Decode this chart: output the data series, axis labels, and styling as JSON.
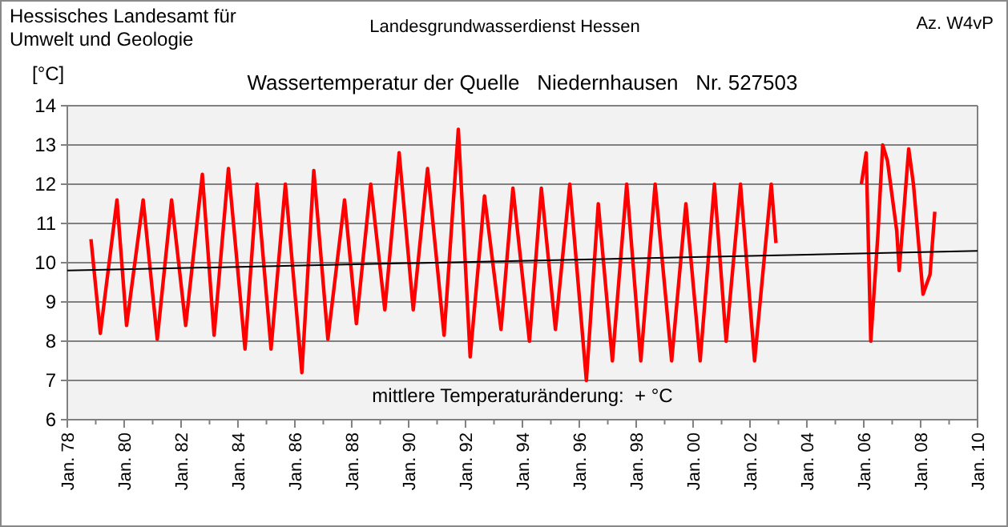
{
  "chart_data": {
    "type": "line",
    "title": "Wassertemperatur der Quelle   Niedernhausen   Nr. 527503",
    "ylabel": "[°C]",
    "annotations": [
      "Hessisches Landesamt für\nUmwelt und Geologie",
      "Landesgrundwasserdienst Hessen",
      "Az. W4vP",
      "mittlere Temperaturänderung:  + °C"
    ],
    "series": [
      {
        "color": "#ff0000",
        "x": [
          "1978-11",
          "1979-03",
          "1979-10",
          "1980-02",
          "1980-09",
          "1981-03",
          "1981-09",
          "1982-03",
          "1982-10",
          "1983-03",
          "1983-09",
          "1984-04",
          "1984-09",
          "1985-03",
          "1985-09",
          "1986-04",
          "1986-09",
          "1987-03",
          "1987-10",
          "1988-03",
          "1988-09",
          "1989-03",
          "1989-09",
          "1990-03",
          "1990-09",
          "1991-04",
          "1991-10",
          "1992-03",
          "1992-09",
          "1993-04",
          "1993-09",
          "1994-04",
          "1994-09",
          "1995-03",
          "1995-09",
          "1996-04",
          "1996-09",
          "1997-03",
          "1997-09",
          "1998-03",
          "1998-09",
          "1999-04",
          "1999-10",
          "2000-04",
          "2000-10",
          "2001-03",
          "2001-09",
          "2002-03",
          "2002-10",
          "2002-12",
          "2004-06",
          "2005-12",
          "2006-02",
          "2006-04",
          "2006-07",
          "2006-09",
          "2006-11",
          "2007-03",
          "2007-04",
          "2007-08",
          "2007-10",
          "2008-02",
          "2008-05",
          "2008-07"
        ],
        "values": [
          10.6,
          8.2,
          11.6,
          8.4,
          11.6,
          8.05,
          11.6,
          8.4,
          12.25,
          8.15,
          12.4,
          7.8,
          12.0,
          7.8,
          12.0,
          7.2,
          12.35,
          8.05,
          11.6,
          8.45,
          12.0,
          8.8,
          12.8,
          8.8,
          12.4,
          8.15,
          13.4,
          7.6,
          11.7,
          8.3,
          11.9,
          8.0,
          11.9,
          8.3,
          12.0,
          7.0,
          11.5,
          7.5,
          12.0,
          7.5,
          12.0,
          7.5,
          11.5,
          7.5,
          12.0,
          8.0,
          12.0,
          7.5,
          12.0,
          10.5,
          null,
          12.0,
          12.8,
          8.0,
          10.7,
          13.0,
          12.6,
          10.8,
          9.8,
          12.9,
          12.0,
          9.2,
          9.7,
          11.3
        ]
      },
      {
        "color": "#000000",
        "x": [
          "1978-01",
          "2010-01"
        ],
        "values": [
          9.8,
          10.3
        ]
      }
    ],
    "xlim": [
      "1978-01",
      "2010-01"
    ],
    "xticks": [
      {
        "value": "1978-01",
        "label": "Jan. 78"
      },
      {
        "value": "1979-01",
        "label": null
      },
      {
        "value": "1980-01",
        "label": "Jan. 80"
      },
      {
        "value": "1981-01",
        "label": null
      },
      {
        "value": "1982-01",
        "label": "Jan. 82"
      },
      {
        "value": "1983-01",
        "label": null
      },
      {
        "value": "1984-01",
        "label": "Jan. 84"
      },
      {
        "value": "1985-01",
        "label": null
      },
      {
        "value": "1986-01",
        "label": "Jan. 86"
      },
      {
        "value": "1987-01",
        "label": null
      },
      {
        "value": "1988-01",
        "label": "Jan. 88"
      },
      {
        "value": "1989-01",
        "label": null
      },
      {
        "value": "1990-01",
        "label": "Jan. 90"
      },
      {
        "value": "1991-01",
        "label": null
      },
      {
        "value": "1992-01",
        "label": "Jan. 92"
      },
      {
        "value": "1993-01",
        "label": null
      },
      {
        "value": "1994-01",
        "label": "Jan. 94"
      },
      {
        "value": "1995-01",
        "label": null
      },
      {
        "value": "1996-01",
        "label": "Jan. 96"
      },
      {
        "value": "1997-01",
        "label": null
      },
      {
        "value": "1998-01",
        "label": "Jan. 98"
      },
      {
        "value": "1999-01",
        "label": null
      },
      {
        "value": "2000-01",
        "label": "Jan. 00"
      },
      {
        "value": "2001-01",
        "label": null
      },
      {
        "value": "2002-01",
        "label": "Jan. 02"
      },
      {
        "value": "2003-01",
        "label": null
      },
      {
        "value": "2004-01",
        "label": "Jan. 04"
      },
      {
        "value": "2005-01",
        "label": null
      },
      {
        "value": "2006-01",
        "label": "Jan. 06"
      },
      {
        "value": "2007-01",
        "label": null
      },
      {
        "value": "2008-01",
        "label": "Jan. 08"
      },
      {
        "value": "2009-01",
        "label": null
      },
      {
        "value": "2010-01",
        "label": "Jan. 10"
      }
    ],
    "ylim": [
      6,
      14
    ],
    "yticks": [
      6,
      7,
      8,
      9,
      10,
      11,
      12,
      13,
      14
    ],
    "grid": "y"
  }
}
